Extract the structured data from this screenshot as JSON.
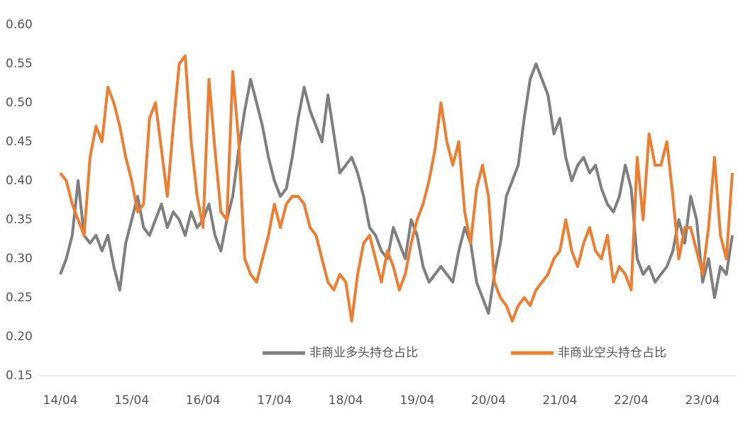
{
  "chart_data": {
    "type": "line",
    "categories": [
      "14/04",
      null,
      null,
      null,
      null,
      null,
      null,
      null,
      null,
      null,
      null,
      null,
      "15/04",
      null,
      null,
      null,
      null,
      null,
      null,
      null,
      null,
      null,
      null,
      null,
      "16/04",
      null,
      null,
      null,
      null,
      null,
      null,
      null,
      null,
      null,
      null,
      null,
      "17/04",
      null,
      null,
      null,
      null,
      null,
      null,
      null,
      null,
      null,
      null,
      null,
      "18/04",
      null,
      null,
      null,
      null,
      null,
      null,
      null,
      null,
      null,
      null,
      null,
      "19/04",
      null,
      null,
      null,
      null,
      null,
      null,
      null,
      null,
      null,
      null,
      null,
      "20/04",
      null,
      null,
      null,
      null,
      null,
      null,
      null,
      null,
      null,
      null,
      null,
      "21/04",
      null,
      null,
      null,
      null,
      null,
      null,
      null,
      null,
      null,
      null,
      null,
      "22/04",
      null,
      null,
      null,
      null,
      null,
      null,
      null,
      null,
      null,
      null,
      null,
      "23/04",
      null,
      null,
      null,
      null,
      null
    ],
    "series": [
      {
        "name": "非商业多头持仓占比",
        "color": "#7f7f7f",
        "values": [
          0.28,
          0.3,
          0.33,
          0.4,
          0.33,
          0.32,
          0.33,
          0.31,
          0.33,
          0.29,
          0.26,
          0.32,
          0.35,
          0.38,
          0.34,
          0.33,
          0.35,
          0.37,
          0.34,
          0.36,
          0.35,
          0.33,
          0.36,
          0.34,
          0.35,
          0.37,
          0.33,
          0.31,
          0.35,
          0.38,
          0.44,
          0.49,
          0.53,
          0.5,
          0.47,
          0.43,
          0.4,
          0.38,
          0.39,
          0.43,
          0.48,
          0.52,
          0.49,
          0.47,
          0.45,
          0.51,
          0.46,
          0.41,
          0.42,
          0.43,
          0.41,
          0.38,
          0.34,
          0.33,
          0.31,
          0.3,
          0.34,
          0.32,
          0.3,
          0.35,
          0.33,
          0.29,
          0.27,
          0.28,
          0.29,
          0.28,
          0.27,
          0.31,
          0.34,
          0.32,
          0.27,
          0.25,
          0.23,
          0.28,
          0.32,
          0.38,
          0.4,
          0.42,
          0.48,
          0.53,
          0.55,
          0.53,
          0.51,
          0.46,
          0.48,
          0.43,
          0.4,
          0.42,
          0.43,
          0.41,
          0.42,
          0.39,
          0.37,
          0.36,
          0.38,
          0.42,
          0.39,
          0.3,
          0.28,
          0.29,
          0.27,
          0.28,
          0.29,
          0.31,
          0.35,
          0.32,
          0.38,
          0.35,
          0.27,
          0.3,
          0.25,
          0.29,
          0.28,
          0.33
        ]
      },
      {
        "name": "非商业空头持仓占比",
        "color": "#ed7d31",
        "values": [
          0.41,
          0.4,
          0.37,
          0.35,
          0.33,
          0.43,
          0.47,
          0.45,
          0.52,
          0.5,
          0.47,
          0.43,
          0.4,
          0.36,
          0.37,
          0.48,
          0.5,
          0.44,
          0.38,
          0.47,
          0.55,
          0.56,
          0.45,
          0.38,
          0.34,
          0.53,
          0.44,
          0.36,
          0.35,
          0.54,
          0.45,
          0.3,
          0.28,
          0.27,
          0.3,
          0.33,
          0.37,
          0.34,
          0.37,
          0.38,
          0.38,
          0.37,
          0.34,
          0.33,
          0.3,
          0.27,
          0.26,
          0.28,
          0.27,
          0.22,
          0.28,
          0.32,
          0.33,
          0.3,
          0.27,
          0.31,
          0.29,
          0.26,
          0.28,
          0.32,
          0.35,
          0.37,
          0.4,
          0.44,
          0.5,
          0.45,
          0.42,
          0.45,
          0.36,
          0.32,
          0.39,
          0.42,
          0.38,
          0.27,
          0.25,
          0.24,
          0.22,
          0.24,
          0.25,
          0.24,
          0.26,
          0.27,
          0.28,
          0.3,
          0.31,
          0.35,
          0.31,
          0.29,
          0.32,
          0.34,
          0.31,
          0.3,
          0.33,
          0.27,
          0.29,
          0.28,
          0.26,
          0.43,
          0.35,
          0.46,
          0.42,
          0.42,
          0.45,
          0.38,
          0.3,
          0.34,
          0.34,
          0.31,
          0.28,
          0.34,
          0.43,
          0.33,
          0.3,
          0.41
        ]
      }
    ],
    "ylim": [
      0.15,
      0.6
    ],
    "yticks": [
      0.15,
      {
        "value": 0.2,
        "label": "0.20"
      },
      0.25,
      {
        "value": 0.3,
        "label": "0.30"
      },
      0.35,
      {
        "value": 0.4,
        "label": "0.40"
      },
      0.45,
      {
        "value": 0.5,
        "label": "0.50"
      },
      0.55,
      {
        "value": 0.6,
        "label": "0.60"
      }
    ],
    "grid": false,
    "legend": "bottom"
  }
}
